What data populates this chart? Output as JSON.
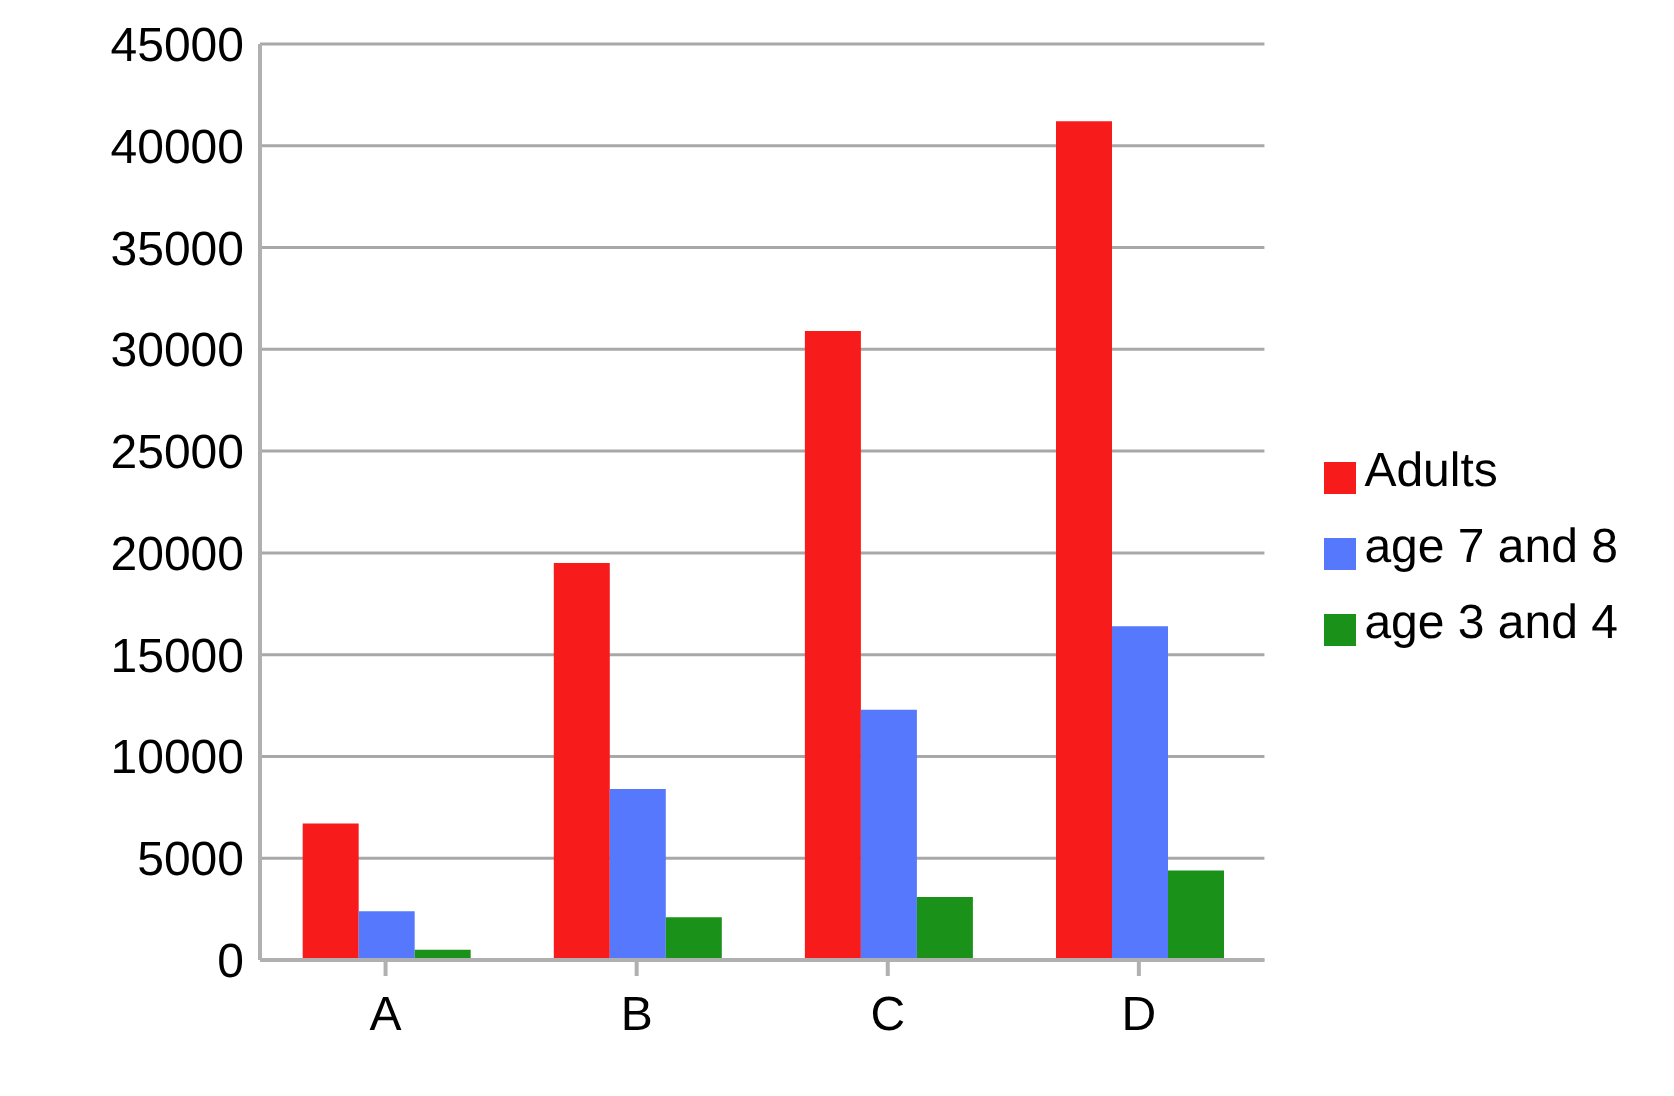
{
  "chart_data": {
    "type": "bar",
    "categories": [
      "A",
      "B",
      "C",
      "D"
    ],
    "series": [
      {
        "name": "Adults",
        "color": "#f81b1b",
        "values": [
          6700,
          19500,
          30900,
          41200
        ]
      },
      {
        "name": "age 7 and 8",
        "color": "#5578fd",
        "values": [
          2400,
          8400,
          12300,
          16400
        ]
      },
      {
        "name": "age 3 and 4",
        "color": "#1a9119",
        "values": [
          500,
          2100,
          3100,
          4400
        ]
      }
    ],
    "ylim": [
      0,
      45000
    ],
    "yticks": [
      0,
      5000,
      10000,
      15000,
      20000,
      25000,
      30000,
      35000,
      40000,
      45000
    ],
    "grid": "y",
    "legend": "right"
  }
}
